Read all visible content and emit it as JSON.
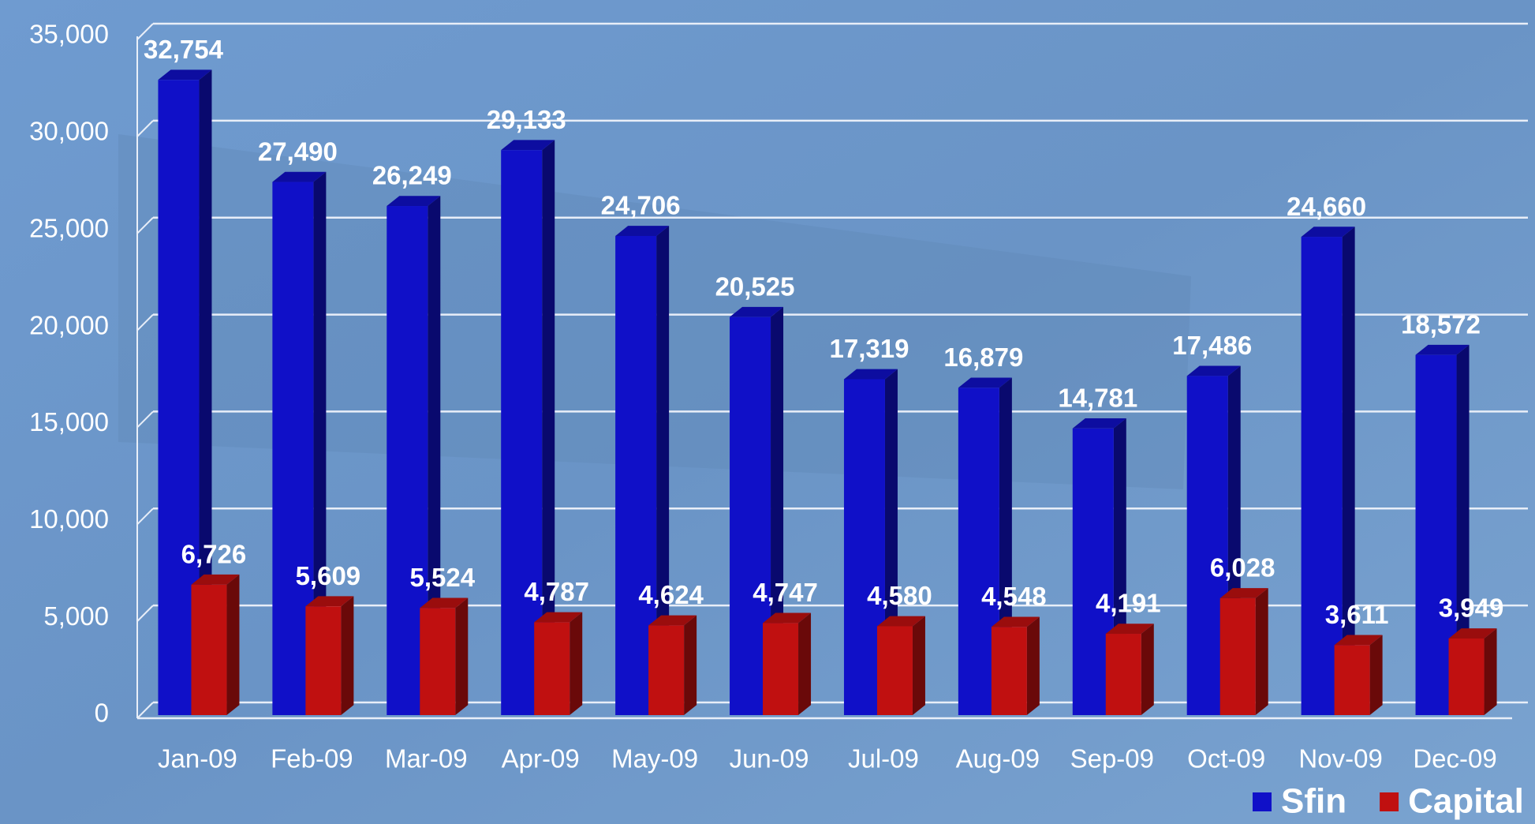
{
  "chart_data": {
    "type": "bar",
    "categories": [
      "Jan-09",
      "Feb-09",
      "Mar-09",
      "Apr-09",
      "May-09",
      "Jun-09",
      "Jul-09",
      "Aug-09",
      "Sep-09",
      "Oct-09",
      "Nov-09",
      "Dec-09"
    ],
    "series": [
      {
        "name": "Sfin",
        "color": "#1010c8",
        "values": [
          32754,
          27490,
          26249,
          29133,
          24706,
          20525,
          17319,
          16879,
          14781,
          17486,
          24660,
          18572
        ],
        "value_labels": [
          "32,754",
          "27,490",
          "26,249",
          "29,133",
          "24,706",
          "20,525",
          "17,319",
          "16,879",
          "14,781",
          "17,486",
          "24,660",
          "18,572"
        ]
      },
      {
        "name": "Capital",
        "color": "#c01010",
        "values": [
          6726,
          5609,
          5524,
          4787,
          4624,
          4747,
          4580,
          4548,
          4191,
          6028,
          3611,
          3949
        ],
        "value_labels": [
          "6,726",
          "5,609",
          "5,524",
          "4,787",
          "4,624",
          "4,747",
          "4,580",
          "4,548",
          "4,191",
          "6,028",
          "3,611",
          "3,949"
        ]
      }
    ],
    "ylim": [
      0,
      35000
    ],
    "yticks": [
      0,
      {
        "value": 5000,
        "label": "5,000"
      },
      {
        "value": 10000,
        "label": "10,000"
      },
      {
        "value": 15000,
        "label": "15,000"
      },
      {
        "value": 20000,
        "label": "20,000"
      },
      {
        "value": 25000,
        "label": "25,000"
      },
      {
        "value": 30000,
        "label": "30,000"
      },
      {
        "value": 35000,
        "label": "35,000"
      }
    ],
    "grid": true,
    "legend": "lower right"
  }
}
